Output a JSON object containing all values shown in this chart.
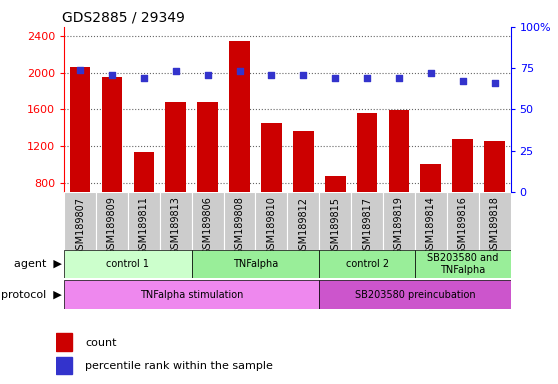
{
  "title": "GDS2885 / 29349",
  "samples": [
    "GSM189807",
    "GSM189809",
    "GSM189811",
    "GSM189813",
    "GSM189806",
    "GSM189808",
    "GSM189810",
    "GSM189812",
    "GSM189815",
    "GSM189817",
    "GSM189819",
    "GSM189814",
    "GSM189816",
    "GSM189818"
  ],
  "counts": [
    2060,
    1950,
    1140,
    1680,
    1680,
    2350,
    1450,
    1360,
    870,
    1560,
    1590,
    1010,
    1280,
    1260
  ],
  "percentiles": [
    74,
    71,
    69,
    73,
    71,
    73,
    71,
    71,
    69,
    69,
    69,
    72,
    67,
    66
  ],
  "ylim_left": [
    700,
    2500
  ],
  "ylim_right": [
    0,
    100
  ],
  "yticks_left": [
    800,
    1200,
    1600,
    2000,
    2400
  ],
  "yticks_right": [
    0,
    25,
    50,
    75,
    100
  ],
  "bar_color": "#cc0000",
  "dot_color": "#3333cc",
  "agent_groups": [
    {
      "label": "control 1",
      "start": 0,
      "end": 4,
      "color": "#ccffcc"
    },
    {
      "label": "TNFalpha",
      "start": 4,
      "end": 8,
      "color": "#99ee99"
    },
    {
      "label": "control 2",
      "start": 8,
      "end": 11,
      "color": "#99ee99"
    },
    {
      "label": "SB203580 and\nTNFalpha",
      "start": 11,
      "end": 14,
      "color": "#99ee99"
    }
  ],
  "protocol_groups": [
    {
      "label": "TNFalpha stimulation",
      "start": 0,
      "end": 8,
      "color": "#ee88ee"
    },
    {
      "label": "SB203580 preincubation",
      "start": 8,
      "end": 14,
      "color": "#cc55cc"
    }
  ],
  "legend_count_label": "count",
  "legend_pct_label": "percentile rank within the sample",
  "xlabel_agent": "agent",
  "xlabel_protocol": "protocol",
  "bg_color": "#ffffff",
  "tick_label_bg": "#cccccc",
  "grid_color": "#666666",
  "title_fontsize": 10,
  "axis_fontsize": 8,
  "tick_fontsize": 7,
  "label_fontsize": 8
}
